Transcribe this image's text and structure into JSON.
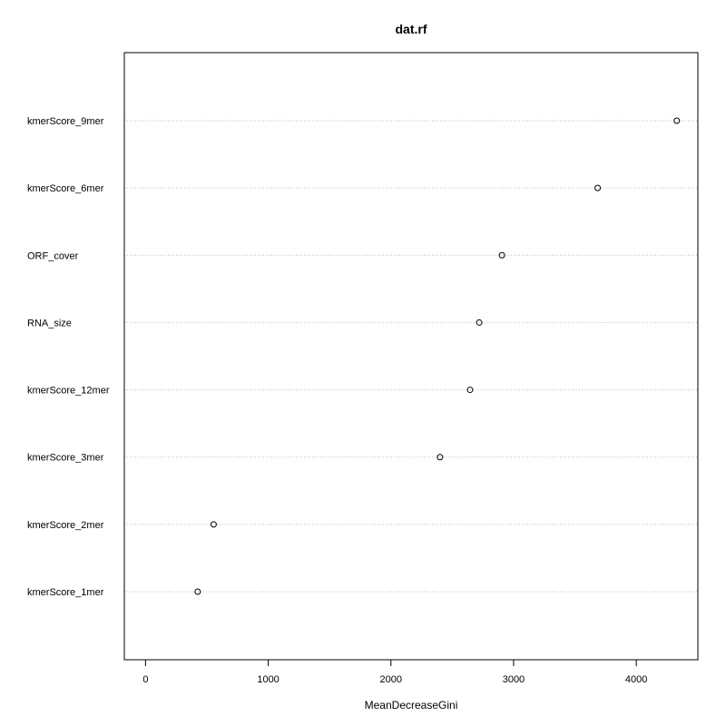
{
  "chart_data": {
    "type": "scatter",
    "title": "dat.rf",
    "xlabel": "MeanDecreaseGini",
    "ylabel": "",
    "xlim": [
      -173,
      4502
    ],
    "xticks": [
      0,
      1000,
      2000,
      3000,
      4000
    ],
    "grid": "horizontal dotted",
    "categories": [
      "kmerScore_9mer",
      "kmerScore_6mer",
      "ORF_cover",
      "RNA_size",
      "kmerScore_12mer",
      "kmerScore_3mer",
      "kmerScore_2mer",
      "kmerScore_1mer"
    ],
    "values": [
      4330,
      3685,
      2905,
      2720,
      2645,
      2400,
      555,
      425
    ],
    "point_color": "#000000",
    "grid_color": "#bebebe"
  }
}
